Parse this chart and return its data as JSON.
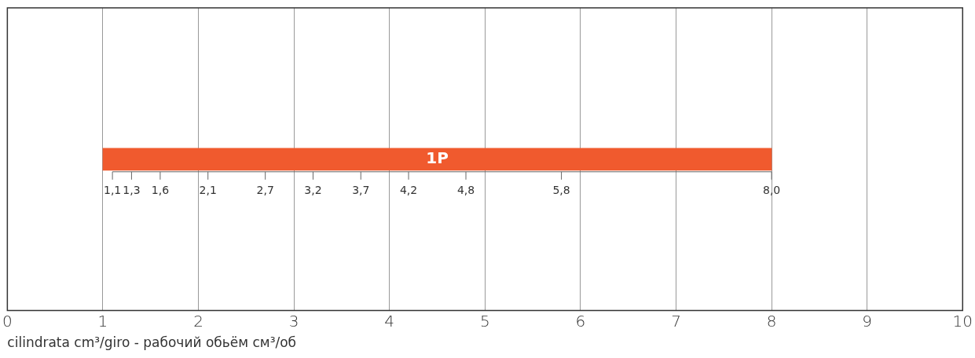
{
  "chart_data": {
    "type": "bar",
    "orientation": "horizontal",
    "categories": [
      null
    ],
    "series": [
      {
        "name": "1P",
        "color": "#f05a2e",
        "values": [
          7
        ],
        "base": [
          1
        ]
      }
    ],
    "xlim": [
      0,
      10
    ],
    "xticks": [
      0,
      1,
      2,
      3,
      4,
      5,
      6,
      7,
      8,
      9,
      10
    ],
    "grid": "x",
    "legend": false,
    "xlabel": "cilindrata cm³/giro - рабочий обьём см³/об",
    "x2lim": [
      0,
      10
    ],
    "x2ticks": [
      {
        "value": 1.1,
        "label": "1,1"
      },
      {
        "value": 1.3,
        "label": "1,3"
      },
      {
        "value": 1.6,
        "label": "1,6"
      },
      {
        "value": 2.1,
        "label": "2,1"
      },
      {
        "value": 2.7,
        "label": "2,7"
      },
      {
        "value": 3.2,
        "label": "3,2"
      },
      {
        "value": 3.7,
        "label": "3,7"
      },
      {
        "value": 4.2,
        "label": "4,2"
      },
      {
        "value": 4.8,
        "label": "4,8"
      },
      {
        "value": 5.8,
        "label": "5,8"
      },
      {
        "value": 8.0,
        "label": "8,0"
      }
    ]
  }
}
